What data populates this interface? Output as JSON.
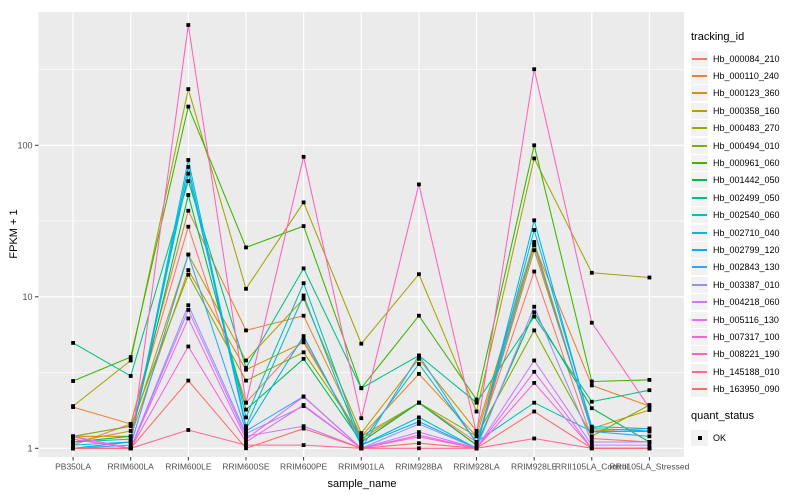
{
  "figure": {
    "panel_background": "#EBEBEB",
    "grid_color": "#FFFFFF",
    "tick_color": "#333333",
    "tick_label_color": "#4D4D4D",
    "point_color": "#000000",
    "legend_key_background": "#F2F2F2"
  },
  "chart_data": {
    "type": "line",
    "title": "",
    "xlabel": "sample_name",
    "ylabel": "FPKM + 1",
    "y_scale": "log10",
    "y_ticks": [
      1,
      10,
      100
    ],
    "y_minor_ticks": [
      3.162,
      31.623,
      316.228
    ],
    "ylim": [
      0.95,
      760
    ],
    "grid": true,
    "legend_position": "right",
    "legend_title": "tracking_id",
    "quant_legend": {
      "title": "quant_status",
      "label": "OK"
    },
    "categories": [
      "PB350LA",
      "RRIM600LA",
      "RRIM600LE",
      "RRIM600SE",
      "RRIM600PE",
      "RRIM901LA",
      "RRIM928BA",
      "RRIM928LA",
      "RRIM928LE",
      "RRII105LA_Control",
      "RRII105LA_Stressed"
    ],
    "series": [
      {
        "name": "Hb_000084_210",
        "color": "#F8766D",
        "values": [
          1.05,
          1.45,
          29,
          2.0,
          5.2,
          1.1,
          2.0,
          1.1,
          14.7,
          1.16,
          1.1
        ]
      },
      {
        "name": "Hb_000110_240",
        "color": "#EA8331",
        "values": [
          1.87,
          1.45,
          37,
          6.0,
          7.5,
          1.2,
          3.1,
          1.2,
          22,
          2.6,
          1.9
        ]
      },
      {
        "name": "Hb_000123_360",
        "color": "#D89000",
        "values": [
          1.2,
          1.2,
          15,
          3.3,
          5.0,
          1.15,
          2.0,
          1.05,
          20.3,
          1.35,
          1.79
        ]
      },
      {
        "name": "Hb_000358_160",
        "color": "#C09B00",
        "values": [
          1.1,
          1.3,
          19,
          3.8,
          9.7,
          1.26,
          3.9,
          1.3,
          23,
          1.3,
          1.35
        ]
      },
      {
        "name": "Hb_000483_270",
        "color": "#A3A500",
        "values": [
          1.9,
          3.8,
          235,
          11.3,
          42,
          4.9,
          14.1,
          1.75,
          82,
          14.4,
          13.4
        ]
      },
      {
        "name": "Hb_000494_010",
        "color": "#7CAE00",
        "values": [
          1.2,
          1.4,
          14,
          2.8,
          4.3,
          1.2,
          2.0,
          1.2,
          6.0,
          1.2,
          1.93
        ]
      },
      {
        "name": "Hb_000961_060",
        "color": "#39B600",
        "values": [
          2.78,
          4.0,
          180,
          21.2,
          29.3,
          2.5,
          7.5,
          2.1,
          100,
          2.76,
          2.83
        ]
      },
      {
        "name": "Hb_001442_050",
        "color": "#00BB4E",
        "values": [
          1.1,
          1.2,
          47,
          1.8,
          3.9,
          1.1,
          2.0,
          1.05,
          7.9,
          1.84,
          1.1
        ]
      },
      {
        "name": "Hb_002499_050",
        "color": "#00C087",
        "values": [
          4.96,
          3.0,
          58,
          3.4,
          15.4,
          2.49,
          4.1,
          2.0,
          7.4,
          2.03,
          2.42
        ]
      },
      {
        "name": "Hb_002540_060",
        "color": "#00C0B8",
        "values": [
          1.1,
          1.15,
          65,
          1.6,
          12.3,
          1.1,
          3.6,
          1.1,
          2.0,
          1.29,
          1.29
        ]
      },
      {
        "name": "Hb_002710_040",
        "color": "#00BCD8",
        "values": [
          1.05,
          1.1,
          80,
          1.4,
          10.2,
          1.05,
          1.6,
          1.0,
          27.6,
          1.39,
          1.35
        ]
      },
      {
        "name": "Hb_002799_120",
        "color": "#00B0F6",
        "values": [
          1.0,
          1.1,
          72,
          1.35,
          5.5,
          1.05,
          1.5,
          1.0,
          32,
          1.35,
          1.3
        ]
      },
      {
        "name": "Hb_002843_130",
        "color": "#35A2FF",
        "values": [
          1.0,
          1.05,
          19,
          1.3,
          2.2,
          1.0,
          4.1,
          1.08,
          21.9,
          1.29,
          1.2
        ]
      },
      {
        "name": "Hb_003387_010",
        "color": "#9590FF",
        "values": [
          1.0,
          1.0,
          8.8,
          1.25,
          1.9,
          1.0,
          1.45,
          1.0,
          8.6,
          1.1,
          1.1
        ]
      },
      {
        "name": "Hb_004218_060",
        "color": "#C77CFF",
        "values": [
          1.2,
          1.0,
          8.2,
          1.2,
          1.4,
          1.0,
          1.28,
          1.0,
          3.8,
          1.05,
          1.05
        ]
      },
      {
        "name": "Hb_005116_130",
        "color": "#E76BF3",
        "values": [
          1.19,
          1.0,
          7.2,
          1.15,
          2.19,
          1.0,
          1.22,
          1.0,
          3.2,
          1.0,
          1.0
        ]
      },
      {
        "name": "Hb_007317_100",
        "color": "#FA62DB",
        "values": [
          1.15,
          1.0,
          4.7,
          1.1,
          1.93,
          1.0,
          1.19,
          1.0,
          2.7,
          1.0,
          1.0
        ]
      },
      {
        "name": "Hb_008221_190",
        "color": "#FF62BC",
        "values": [
          1.0,
          1.0,
          622,
          2.0,
          84,
          1.58,
          55.2,
          1.26,
          318,
          6.75,
          1.85
        ]
      },
      {
        "name": "Hb_145188_010",
        "color": "#FF6A98",
        "values": [
          1.0,
          1.0,
          1.32,
          1.05,
          1.05,
          1.0,
          1.0,
          1.0,
          1.16,
          1.0,
          1.0
        ]
      },
      {
        "name": "Hb_163950_090",
        "color": "#FF6C67",
        "values": [
          1.0,
          1.0,
          2.8,
          1.0,
          1.35,
          1.0,
          1.08,
          1.0,
          1.75,
          1.0,
          1.0
        ]
      }
    ]
  }
}
